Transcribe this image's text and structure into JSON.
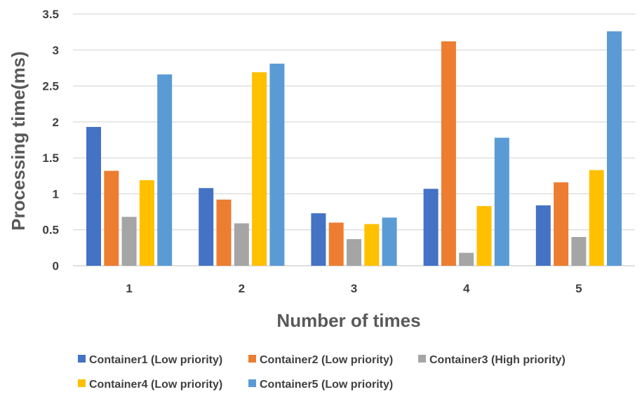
{
  "chart_data": {
    "type": "bar",
    "title": "",
    "xlabel": "Number of times",
    "ylabel": "Processing time(ms)",
    "categories": [
      "1",
      "2",
      "3",
      "4",
      "5"
    ],
    "ylim": [
      0,
      3.5
    ],
    "yticks": [
      "0",
      "0.5",
      "1",
      "1.5",
      "2",
      "2.5",
      "3",
      "3.5"
    ],
    "grid": true,
    "legend_position": "bottom",
    "series": [
      {
        "name": "Container1 (Low priority)",
        "color": "#4472C4",
        "values": [
          1.93,
          1.08,
          0.73,
          1.07,
          0.84
        ]
      },
      {
        "name": "Container2 (Low priority)",
        "color": "#ED7D31",
        "values": [
          1.32,
          0.92,
          0.6,
          3.12,
          1.16
        ]
      },
      {
        "name": "Container3 (High priority)",
        "color": "#A5A5A5",
        "values": [
          0.68,
          0.59,
          0.37,
          0.18,
          0.4
        ]
      },
      {
        "name": "Container4 (Low priority)",
        "color": "#FFC000",
        "values": [
          1.19,
          2.69,
          0.58,
          0.83,
          1.33
        ]
      },
      {
        "name": "Container5 (Low priority)",
        "color": "#5B9BD5",
        "values": [
          2.66,
          2.81,
          0.67,
          1.78,
          3.26
        ]
      }
    ]
  }
}
